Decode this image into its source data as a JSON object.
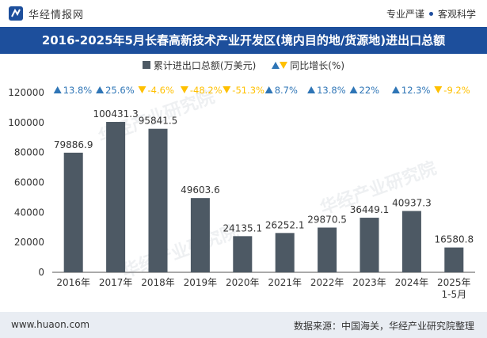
{
  "header": {
    "brand": "华经情报网",
    "tagline_left": "专业严谨",
    "tagline_right": "客观科学"
  },
  "title": "2016-2025年5月长春高新技术产业开发区(境内目的地/货源地)进出口总额",
  "legend": {
    "bar_label": "累计进出口总额(万美元)",
    "growth_label": "同比增长(%)"
  },
  "watermark": "华经产业研究院",
  "footer": {
    "url": "www.huaon.com",
    "source": "数据来源：中国海关，华经产业研究院整理"
  },
  "colors": {
    "bar": "#4d5964",
    "up": "#2e75b6",
    "down": "#ffc000",
    "title_bg": "#1d4f9c"
  },
  "chart_data": {
    "type": "bar",
    "categories": [
      "2016年",
      "2017年",
      "2018年",
      "2019年",
      "2020年",
      "2021年",
      "2022年",
      "2023年",
      "2024年",
      "2025年\n1-5月"
    ],
    "series": [
      {
        "name": "累计进出口总额(万美元)",
        "values": [
          79886.9,
          100431.3,
          95841.5,
          49603.6,
          24135.1,
          26252.1,
          29870.5,
          36449.1,
          40937.3,
          16580.8
        ]
      }
    ],
    "value_labels": [
      "79886.9",
      "100431.3",
      "95841.5",
      "49603.6",
      "24135.1",
      "26252.1",
      "29870.5",
      "36449.1",
      "40937.3",
      "16580.8"
    ],
    "growth": [
      13.8,
      25.6,
      -4.6,
      -48.2,
      -51.3,
      8.7,
      13.8,
      22,
      12.3,
      -9.2
    ],
    "growth_labels": [
      "13.8%",
      "25.6%",
      "-4.6%",
      "-48.2%",
      "-51.3%",
      "8.7%",
      "13.8%",
      "22%",
      "12.3%",
      "-9.2%"
    ],
    "ylim": [
      0,
      120000
    ],
    "yticks": [
      "0",
      "20000",
      "40000",
      "60000",
      "80000",
      "100000",
      "120000"
    ],
    "ytick_values": [
      0,
      20000,
      40000,
      60000,
      80000,
      100000,
      120000
    ],
    "grid": false
  }
}
